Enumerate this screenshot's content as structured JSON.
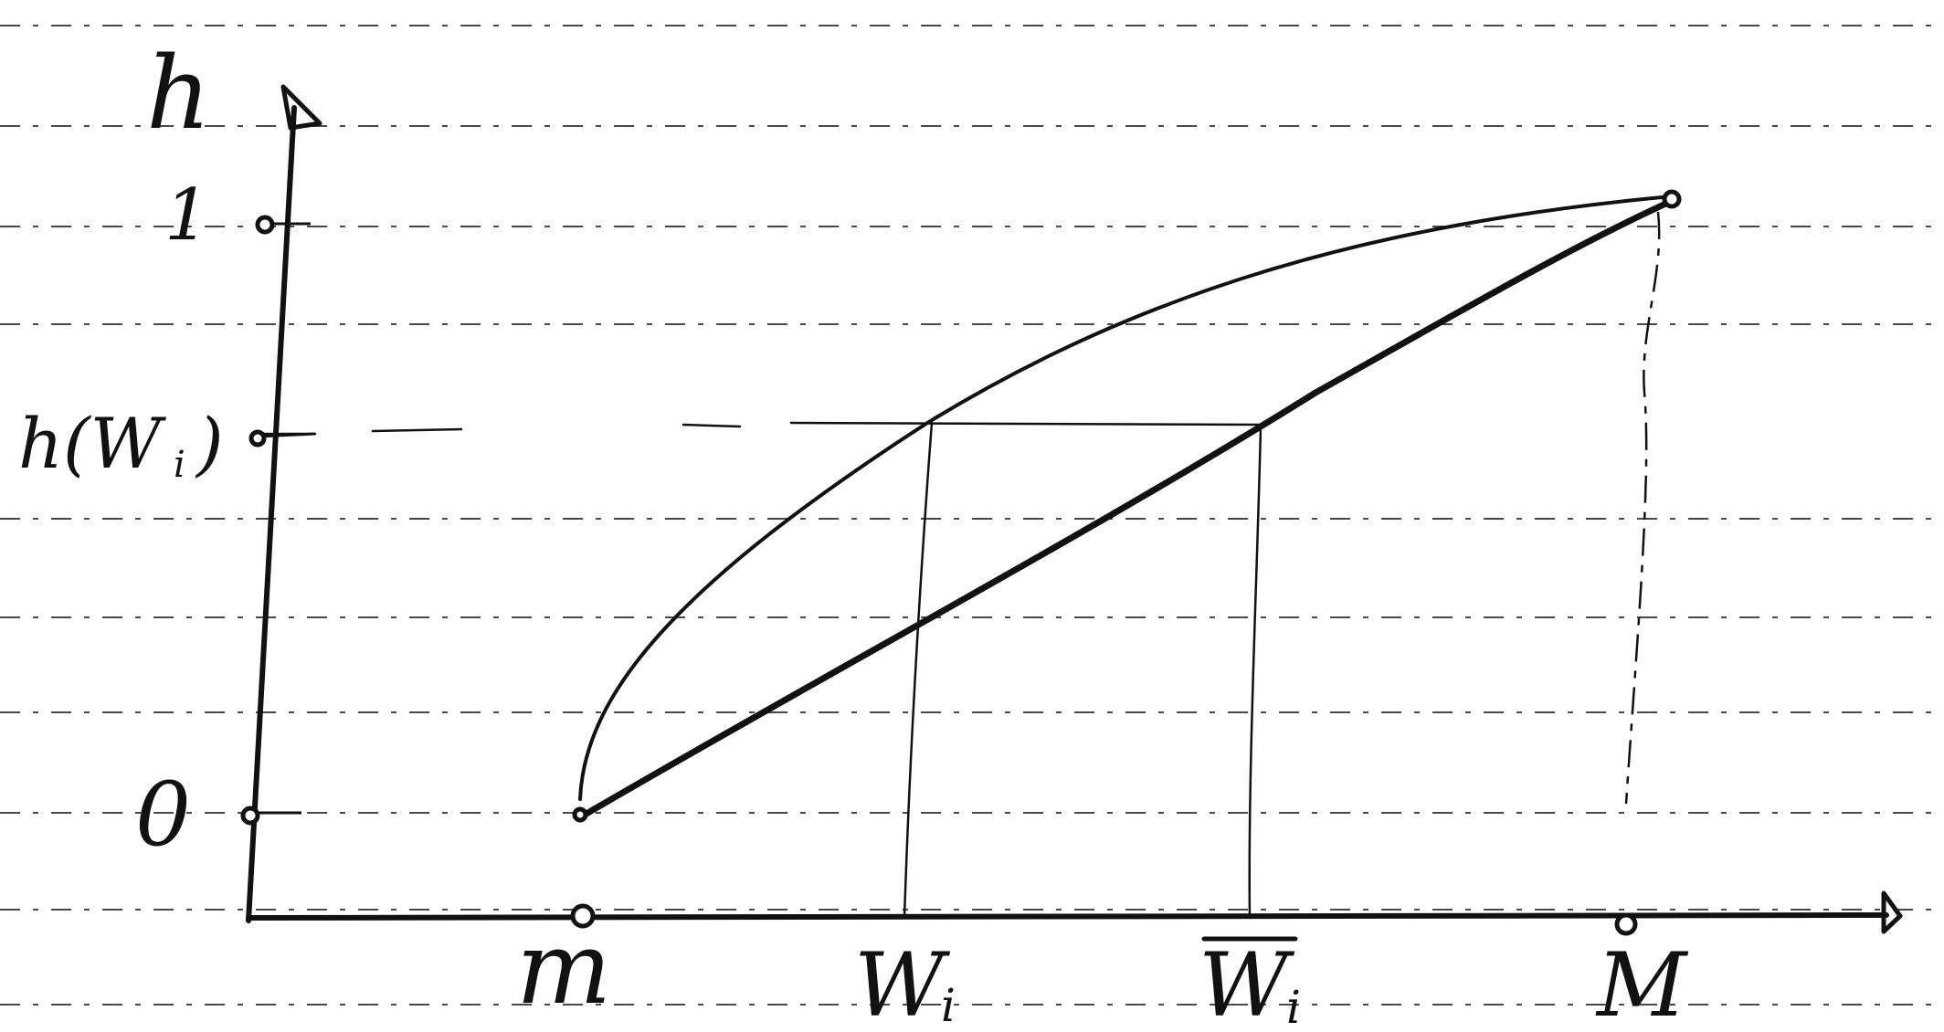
{
  "diagram": {
    "y_axis_label": "h",
    "x_axis_tick_labels": {
      "min": "m",
      "wi": "W",
      "wi_sub": "i",
      "wi_bar": "W",
      "wi_bar_sub": "i",
      "max": "M"
    },
    "y_axis_tick_labels": {
      "one": "1",
      "h_wi": "h(W",
      "h_wi_sub": "i",
      "h_wi_close": ")",
      "zero": "0"
    },
    "curves": [
      {
        "name": "concave-curve",
        "shape": "concave",
        "from": "m",
        "to": "M"
      },
      {
        "name": "linear-line",
        "shape": "straight",
        "from": "m",
        "to": "M"
      }
    ],
    "style": "hand-drawn on ruled paper"
  }
}
